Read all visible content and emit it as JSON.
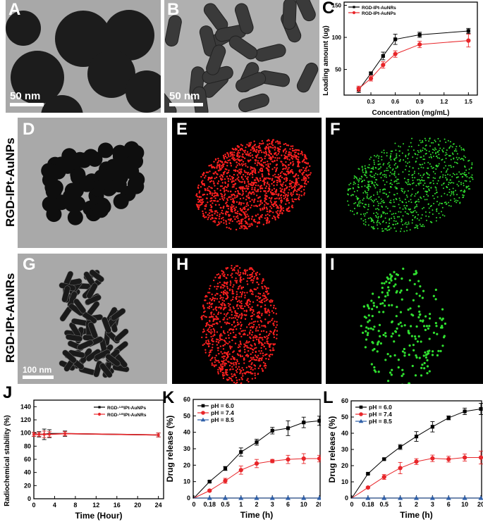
{
  "panels": {
    "A": {
      "letter": "A",
      "scale": "50 nm"
    },
    "B": {
      "letter": "B",
      "scale": "50 nm"
    },
    "C": {
      "letter": "C"
    },
    "D": {
      "letter": "D"
    },
    "E": {
      "letter": "E"
    },
    "F": {
      "letter": "F"
    },
    "G": {
      "letter": "G",
      "scale": "100 nm"
    },
    "H": {
      "letter": "H"
    },
    "I": {
      "letter": "I"
    },
    "J": {
      "letter": "J"
    },
    "K": {
      "letter": "K"
    },
    "L": {
      "letter": "L"
    }
  },
  "row_labels": [
    "RGD-IPt-AuNPs",
    "RGD-IPt-AuNRs"
  ],
  "colors": {
    "black_series": "#000000",
    "red_series": "#e8262a",
    "blue_series": "#2f5fa8",
    "map_red": "#ff2020",
    "map_green": "#30e030"
  },
  "chart_data": [
    {
      "id": "C",
      "type": "line",
      "xlabel": "Concentration (mg/mL)",
      "ylabel": "Loading amount (ug)",
      "xlim": [
        -0.03,
        1.61
      ],
      "ylim": [
        10,
        155
      ],
      "xticks": [
        0.3,
        0.6,
        0.9,
        1.2,
        1.5
      ],
      "xtick_labels": [
        "0.3",
        "0.6",
        "0.9",
        "1.2",
        "1.5"
      ],
      "yticks": [
        50,
        100,
        150
      ],
      "ytick_labels": [
        "50",
        "100",
        "150"
      ],
      "x": [
        0.15,
        0.3,
        0.45,
        0.6,
        0.9,
        1.5
      ],
      "legend": "top-left",
      "series": [
        {
          "name": "RGD-IPt-AuNRs",
          "color": "#000000",
          "marker": "square",
          "values": [
            18,
            44,
            71,
            97,
            104,
            110
          ],
          "err": [
            4,
            2,
            6,
            8,
            4,
            4
          ]
        },
        {
          "name": "RGD-IPt-AuNPs",
          "color": "#e8262a",
          "marker": "circle",
          "values": [
            20,
            36,
            57,
            74,
            89,
            95
          ],
          "err": [
            4,
            4,
            5,
            5,
            5,
            10
          ]
        }
      ]
    },
    {
      "id": "J",
      "type": "line",
      "xlabel": "Time (Hour)",
      "ylabel": "Radiochemical stability (%)",
      "xlim": [
        0,
        25
      ],
      "ylim": [
        0,
        150
      ],
      "xticks": [
        0,
        4,
        8,
        12,
        16,
        20,
        24
      ],
      "xtick_labels": [
        "0",
        "4",
        "8",
        "12",
        "16",
        "20",
        "24"
      ],
      "yticks": [
        0,
        20,
        40,
        60,
        80,
        100,
        120,
        140
      ],
      "ytick_labels": [
        "0",
        "20",
        "40",
        "60",
        "80",
        "100",
        "120",
        "140"
      ],
      "x": [
        0,
        1,
        2,
        3,
        6,
        24
      ],
      "legend": "top-right",
      "series": [
        {
          "name": "RGD-125IPt-AuNPs",
          "color": "#000000",
          "marker": "square",
          "values": [
            98,
            98,
            98,
            99,
            99,
            97
          ],
          "err": [
            3,
            4,
            8,
            6,
            4,
            3
          ]
        },
        {
          "name": "RGD-125IPt-AuNRs",
          "color": "#e8262a",
          "marker": "circle",
          "values": [
            98,
            98,
            98,
            98,
            99,
            97
          ],
          "err": [
            3,
            3,
            5,
            4,
            3,
            3
          ]
        }
      ]
    },
    {
      "id": "K",
      "type": "line",
      "xlabel": "Time (h)",
      "ylabel": "Drug release (%)",
      "categories": [
        "0",
        "0.18",
        "0.5",
        "1",
        "2",
        "3",
        "6",
        "10",
        "20"
      ],
      "ylim": [
        0,
        60
      ],
      "yticks": [
        0,
        10,
        20,
        30,
        40,
        50,
        60
      ],
      "ytick_labels": [
        "0",
        "10",
        "20",
        "30",
        "40",
        "50",
        "60"
      ],
      "legend": "top-left",
      "series": [
        {
          "name": "pH = 6.0",
          "color": "#000000",
          "marker": "square",
          "values": [
            0,
            10,
            18,
            28,
            34,
            41,
            42.5,
            46,
            47
          ],
          "err": [
            0,
            0.5,
            1.2,
            2.5,
            1.8,
            2,
            4.5,
            3.2,
            2.8
          ]
        },
        {
          "name": "pH = 7.4",
          "color": "#e8262a",
          "marker": "circle",
          "values": [
            0,
            4.5,
            10.5,
            17,
            21,
            22.5,
            23.5,
            24,
            24
          ],
          "err": [
            0,
            0.5,
            1.5,
            2.5,
            2.5,
            1,
            2.5,
            3,
            2
          ]
        },
        {
          "name": "pH = 8.5",
          "color": "#2f5fa8",
          "marker": "triangle",
          "values": [
            0,
            0,
            0,
            0,
            0,
            0,
            0,
            0,
            0
          ],
          "err": [
            0,
            0,
            0,
            0,
            0,
            0,
            0,
            0,
            0
          ]
        }
      ]
    },
    {
      "id": "L",
      "type": "line",
      "xlabel": "Time (h)",
      "ylabel": "Drug release (%)",
      "categories": [
        "0",
        "0.18",
        "0.5",
        "1",
        "2",
        "3",
        "6",
        "10",
        "20"
      ],
      "ylim": [
        0,
        60
      ],
      "yticks": [
        0,
        10,
        20,
        30,
        40,
        50,
        60
      ],
      "ytick_labels": [
        "0",
        "10",
        "20",
        "30",
        "40",
        "50",
        "60"
      ],
      "legend": "top-left",
      "series": [
        {
          "name": "pH = 6.0",
          "color": "#000000",
          "marker": "square",
          "values": [
            0,
            15,
            24,
            31.5,
            38,
            44,
            49.5,
            53.5,
            55
          ],
          "err": [
            0,
            0.5,
            0.5,
            1.5,
            3,
            3.2,
            1.2,
            2,
            3.5
          ]
        },
        {
          "name": "pH = 7.4",
          "color": "#e8262a",
          "marker": "circle",
          "values": [
            0,
            6.5,
            13,
            18.5,
            22.5,
            24.5,
            24,
            25,
            25
          ],
          "err": [
            0,
            0.5,
            1.5,
            3.5,
            1.8,
            2,
            1.8,
            2.2,
            4
          ]
        },
        {
          "name": "pH = 8.5",
          "color": "#2f5fa8",
          "marker": "triangle",
          "values": [
            0,
            0,
            0,
            0,
            0,
            0,
            0,
            0,
            0
          ],
          "err": [
            0,
            0,
            0,
            0,
            0,
            0,
            0,
            0,
            0
          ]
        }
      ]
    }
  ]
}
